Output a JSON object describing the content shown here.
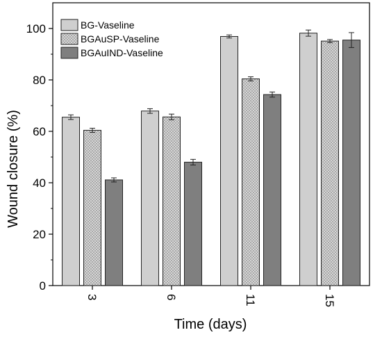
{
  "chart_data": {
    "type": "bar",
    "xlabel": "Time (days)",
    "ylabel": "Wound closure (%)",
    "ylim": [
      0,
      110
    ],
    "y_ticks": [
      0,
      20,
      40,
      60,
      80,
      100
    ],
    "categories": [
      "3",
      "6",
      "11",
      "15"
    ],
    "x_tick_rotation": "rotated 90°",
    "legend_placement": "top-left",
    "grid": false,
    "series": [
      {
        "name": "BG-Vaseline",
        "fill": "light-gray",
        "color": "#cfcfcf",
        "values": [
          65.5,
          67.9,
          96.9,
          98.2
        ],
        "errors": [
          0.9,
          0.9,
          0.6,
          1.2
        ]
      },
      {
        "name": "BGAuSP-Vaseline",
        "fill": "checkered-pattern",
        "color": "#b9b9b9",
        "values": [
          60.4,
          65.6,
          80.4,
          95.1
        ],
        "errors": [
          0.8,
          1.1,
          0.8,
          0.6
        ]
      },
      {
        "name": "BGAuIND-Vaseline",
        "fill": "dark-gray",
        "color": "#7f7f7f",
        "values": [
          41.1,
          48.0,
          74.3,
          95.5
        ],
        "errors": [
          0.8,
          1.1,
          1.0,
          2.9
        ]
      }
    ]
  }
}
